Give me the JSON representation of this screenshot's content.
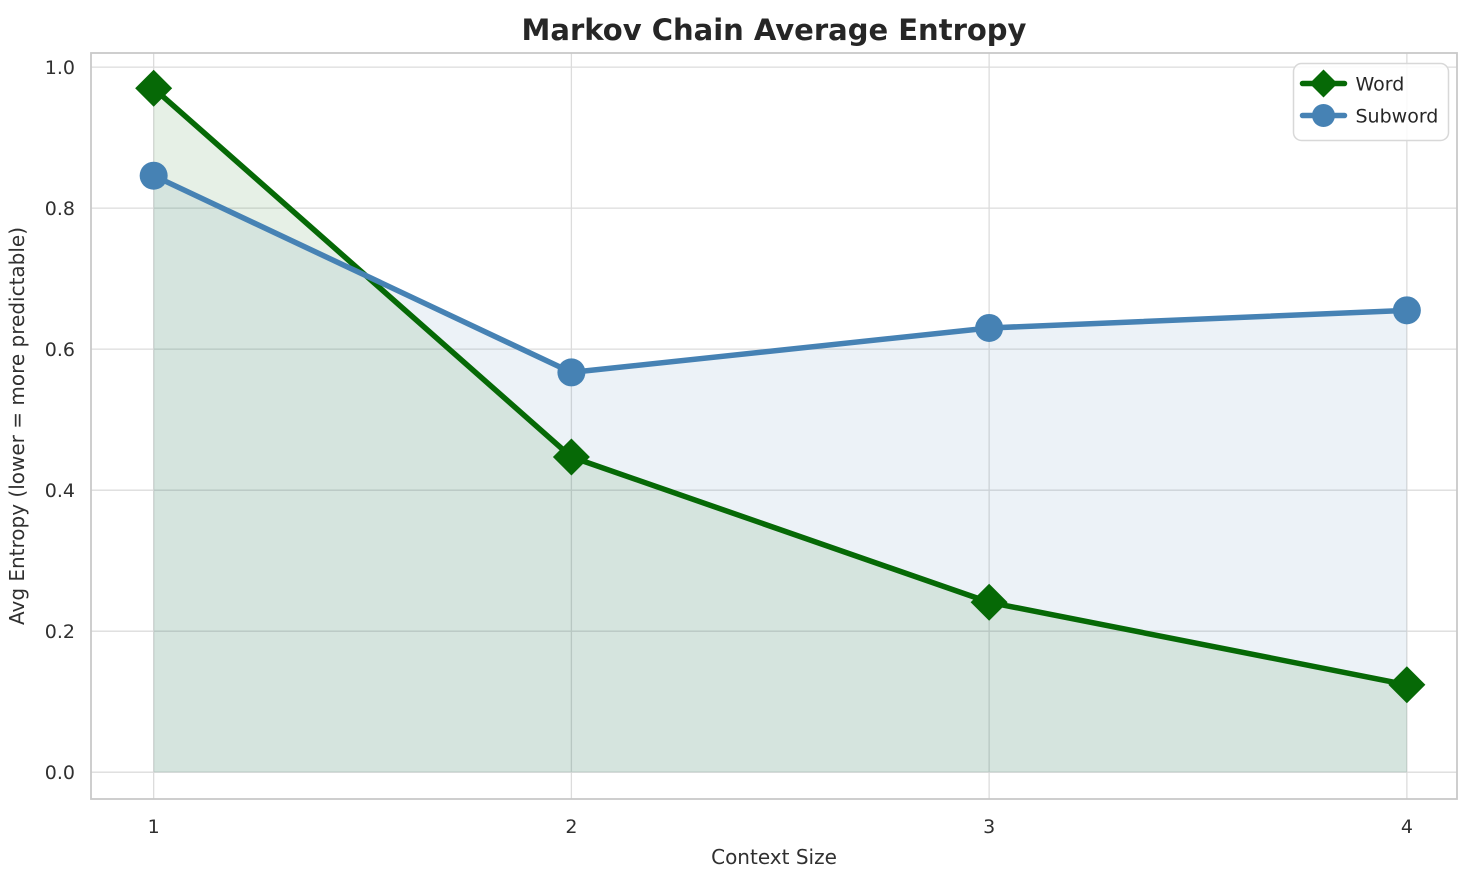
{
  "chart_data": {
    "type": "line",
    "title": "Markov Chain Average Entropy",
    "xlabel": "Context Size",
    "ylabel": "Avg Entropy (lower = more predictable)",
    "x": [
      1,
      2,
      3,
      4
    ],
    "series": [
      {
        "name": "Word",
        "values": [
          0.97,
          0.447,
          0.241,
          0.124
        ],
        "color": "#066906",
        "marker": "diamond",
        "fill_to_zero": true
      },
      {
        "name": "Subword",
        "values": [
          0.846,
          0.567,
          0.63,
          0.655
        ],
        "color": "#4682B4",
        "marker": "circle",
        "fill_to_zero": true
      }
    ],
    "xticks": {
      "values": [
        1,
        2,
        3,
        4
      ],
      "labels": [
        "1",
        "2",
        "3",
        "4"
      ]
    },
    "yticks": {
      "values": [
        0.0,
        0.2,
        0.4,
        0.6,
        0.8,
        1.0
      ],
      "labels": [
        "0.0",
        "0.2",
        "0.4",
        "0.6",
        "0.8",
        "1.0"
      ]
    },
    "xlim": [
      0.85,
      4.12
    ],
    "ylim": [
      -0.038,
      1.02
    ],
    "grid": true,
    "fill_alpha": 0.1,
    "fill_baseline": 0.0,
    "legend": {
      "position": "upper right",
      "items": [
        "Word",
        "Subword"
      ]
    },
    "style": {
      "background": "#FFFFFF",
      "grid_color": "#DCDCDC",
      "spine_color": "#C9C9C9",
      "title_color": "#262626",
      "text_color": "#303030",
      "legend_border_color": "#D8D8D8",
      "legend_background": "#FFFFFF"
    }
  }
}
